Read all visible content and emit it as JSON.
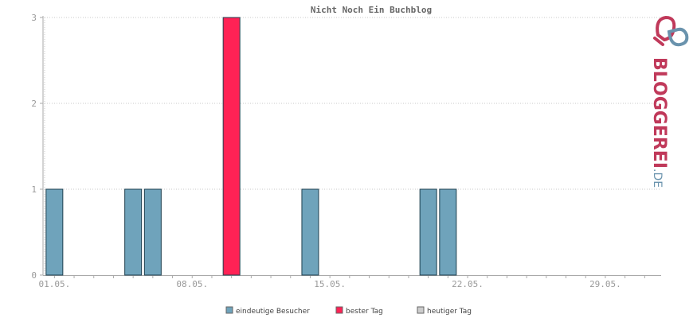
{
  "chart_data": {
    "type": "bar",
    "title": "Nicht Noch Ein Buchblog",
    "x_start_day": 1,
    "x_end_day": 31,
    "x_tick_labels": [
      "01.05.",
      "08.05.",
      "15.05.",
      "22.05.",
      "29.05."
    ],
    "ylim": [
      0,
      3
    ],
    "y_ticks": [
      0,
      1,
      2,
      3
    ],
    "grid": true,
    "series": [
      {
        "name": "eindeutige Besucher",
        "color": "#6fa3bb",
        "points": [
          {
            "day": 1,
            "value": 1
          },
          {
            "day": 5,
            "value": 1
          },
          {
            "day": 6,
            "value": 1
          },
          {
            "day": 14,
            "value": 1
          },
          {
            "day": 20,
            "value": 1
          },
          {
            "day": 21,
            "value": 1
          }
        ]
      },
      {
        "name": "bester Tag",
        "color": "#ff2255",
        "points": [
          {
            "day": 10,
            "value": 3
          }
        ]
      },
      {
        "name": "heutiger Tag",
        "color": "#cccccc",
        "points": []
      }
    ],
    "legend_position": "bottom-center"
  },
  "logo": {
    "text_main": "BLOGGEREI",
    "text_suffix": ".DE",
    "color_main": "#c0395a",
    "color_suffix": "#6a93ad"
  }
}
